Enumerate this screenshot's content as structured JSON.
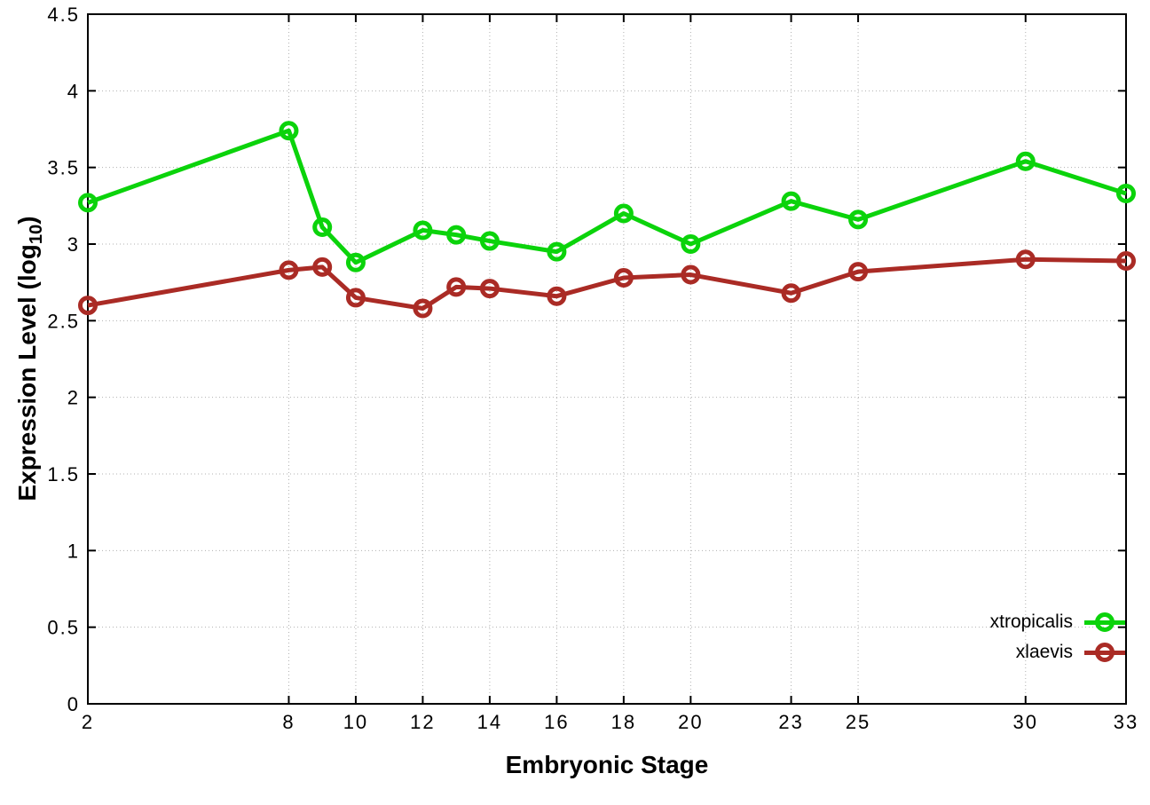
{
  "chart_data": {
    "type": "line",
    "title": "",
    "xlabel": "Embryonic Stage",
    "ylabel_prefix": "Expression Level (log",
    "ylabel_sub": "10",
    "ylabel_suffix": ")",
    "background_color": "#ffffff",
    "grid": "dotted",
    "grid_color": "#b0b0b0",
    "legend_position": "bottom-right",
    "xlim": [
      2,
      33
    ],
    "ylim": [
      0,
      4.5
    ],
    "x_ticks": {
      "values": [
        2,
        8,
        10,
        12,
        14,
        16,
        18,
        20,
        23,
        25,
        30,
        33
      ],
      "labels": [
        "2",
        "8",
        "10",
        "12",
        "14",
        "16",
        "18",
        "20",
        "23",
        "25",
        "30",
        "33"
      ]
    },
    "y_ticks": {
      "values": [
        0,
        0.5,
        1,
        1.5,
        2,
        2.5,
        3,
        3.5,
        4,
        4.5
      ],
      "labels": [
        "0",
        "0.5",
        "1",
        "1.5",
        "2",
        "2.5",
        "3",
        "3.5",
        "4",
        "4.5"
      ]
    },
    "x": [
      2,
      8,
      9,
      10,
      12,
      13,
      14,
      16,
      18,
      20,
      23,
      25,
      30,
      33
    ],
    "series": [
      {
        "name": "xtropicalis",
        "color": "#0bd30b",
        "marker": "open-circle",
        "values": [
          3.27,
          3.74,
          3.11,
          2.88,
          3.09,
          3.06,
          3.02,
          2.95,
          3.2,
          3.0,
          3.28,
          3.16,
          3.54,
          3.33
        ]
      },
      {
        "name": "xlaevis",
        "color": "#aa2b25",
        "marker": "open-circle",
        "values": [
          2.6,
          2.83,
          2.85,
          2.65,
          2.58,
          2.72,
          2.71,
          2.66,
          2.78,
          2.8,
          2.68,
          2.82,
          2.9,
          2.89
        ]
      }
    ]
  }
}
